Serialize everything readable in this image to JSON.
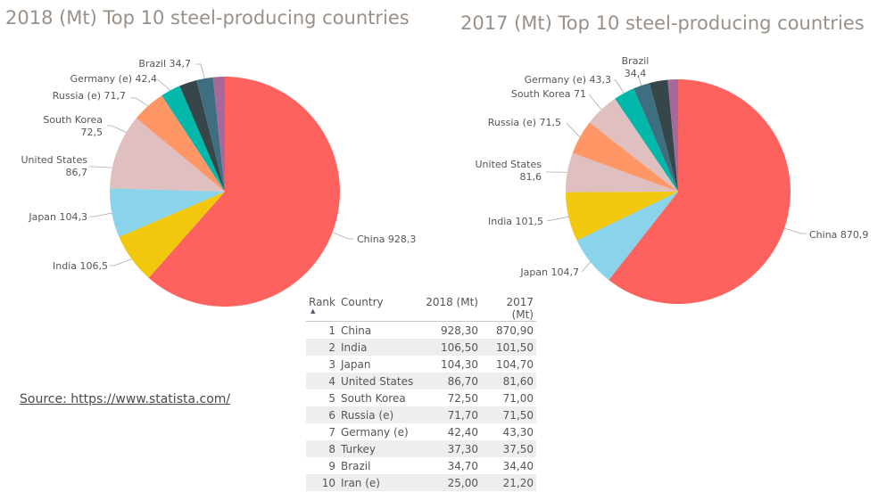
{
  "chart_data": [
    {
      "type": "pie",
      "title": "2018 (Mt) Top 10 steel-producing countries",
      "slices": [
        {
          "label": "China",
          "value": 928.3,
          "display": "China 928,3",
          "color": "#fd625e"
        },
        {
          "label": "India",
          "value": 106.5,
          "display": "India 106,5",
          "color": "#f2c80f"
        },
        {
          "label": "Japan",
          "value": 104.3,
          "display": "Japan 104,3",
          "color": "#8ad4eb"
        },
        {
          "label": "United States",
          "value": 86.7,
          "display": "United States\n86,7",
          "color": "#dfbfbf"
        },
        {
          "label": "South Korea",
          "value": 72.5,
          "display": "South Korea\n72,5",
          "color": "#dfbfbf"
        },
        {
          "label": "Russia (e)",
          "value": 71.7,
          "display": "Russia (e) 71,7",
          "color": "#fe9666"
        },
        {
          "label": "Germany (e)",
          "value": 42.4,
          "display": "Germany (e) 42,4",
          "color": "#01b8aa"
        },
        {
          "label": "Turkey",
          "value": 37.3,
          "display": "",
          "color": "#374649"
        },
        {
          "label": "Brazil",
          "value": 34.7,
          "display": "Brazil 34,7",
          "color": "#3e6f80"
        },
        {
          "label": "Iran (e)",
          "value": 25.0,
          "display": "",
          "color": "#a66999"
        }
      ]
    },
    {
      "type": "pie",
      "title": "2017 (Mt) Top 10 steel-producing countries",
      "slices": [
        {
          "label": "China",
          "value": 870.9,
          "display": "China 870,9",
          "color": "#fd625e"
        },
        {
          "label": "Japan",
          "value": 104.7,
          "display": "Japan 104,7",
          "color": "#8ad4eb"
        },
        {
          "label": "India",
          "value": 101.5,
          "display": "India 101,5",
          "color": "#f2c80f"
        },
        {
          "label": "United States",
          "value": 81.6,
          "display": "United States\n81,6",
          "color": "#dfbfbf"
        },
        {
          "label": "Russia (e)",
          "value": 71.5,
          "display": "Russia (e) 71,5",
          "color": "#fe9666"
        },
        {
          "label": "South Korea",
          "value": 71.0,
          "display": "South Korea 71",
          "color": "#dfbfbf"
        },
        {
          "label": "Germany (e)",
          "value": 43.3,
          "display": "Germany (e) 43,3",
          "color": "#01b8aa"
        },
        {
          "label": "Brazil",
          "value": 34.4,
          "display": "Brazil\n34,4",
          "color": "#3e6f80"
        },
        {
          "label": "Turkey",
          "value": 37.5,
          "display": "",
          "color": "#374649"
        },
        {
          "label": "Iran (e)",
          "value": 21.2,
          "display": "",
          "color": "#a66999"
        }
      ]
    },
    {
      "type": "table",
      "columns": [
        "Rank",
        "Country",
        "2018 (Mt)",
        "2017 (Mt)"
      ],
      "rows": [
        [
          "1",
          "China",
          "928,30",
          "870,90"
        ],
        [
          "2",
          "India",
          "106,50",
          "101,50"
        ],
        [
          "3",
          "Japan",
          "104,30",
          "104,70"
        ],
        [
          "4",
          "United States",
          "86,70",
          "81,60"
        ],
        [
          "5",
          "South Korea",
          "72,50",
          "71,00"
        ],
        [
          "6",
          "Russia (e)",
          "71,70",
          "71,50"
        ],
        [
          "7",
          "Germany (e)",
          "42,40",
          "43,30"
        ],
        [
          "8",
          "Turkey",
          "37,30",
          "37,50"
        ],
        [
          "9",
          "Brazil",
          "34,70",
          "34,40"
        ],
        [
          "10",
          "Iran (e)",
          "25,00",
          "21,20"
        ]
      ]
    }
  ],
  "table": {
    "headers": {
      "rank": "Rank",
      "country": "Country",
      "y2018": "2018 (Mt)",
      "y2017": "2017 (Mt)"
    },
    "sort_icon": "▲"
  },
  "source": {
    "text": "Source: https://www.statista.com/"
  },
  "colors": {
    "china": "#fd625e",
    "india": "#f2c80f",
    "japan": "#8ad4eb",
    "us_korea": "#dfbfbf",
    "russia": "#fe9666",
    "germany": "#01b8aa",
    "turkey": "#374649",
    "brazil": "#3e6f80",
    "iran": "#a66999"
  }
}
